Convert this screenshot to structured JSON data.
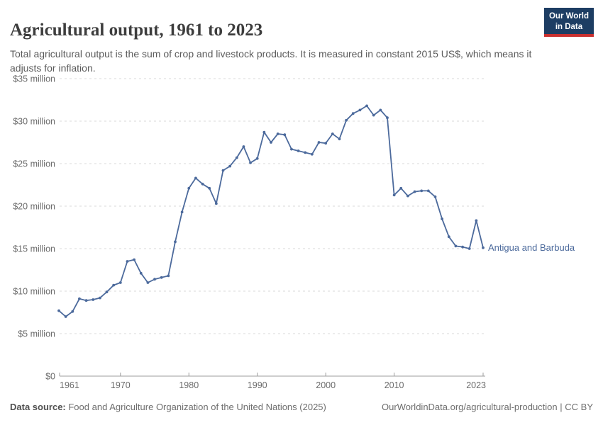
{
  "header": {
    "title": "Agricultural output, 1961 to 2023",
    "subtitle": "Total agricultural output is the sum of crop and livestock products. It is measured in constant 2015 US$, which means it adjusts for inflation.",
    "logo": {
      "line1": "Our World",
      "line2": "in Data",
      "bg_color": "#1d3d63",
      "accent_color": "#c9302f"
    }
  },
  "chart_data": {
    "type": "line",
    "title": "Agricultural output, 1961 to 2023",
    "entity": "Antigua and Barbuda",
    "unit": "constant 2015 US$, millions",
    "x": [
      1961,
      1962,
      1963,
      1964,
      1965,
      1966,
      1967,
      1968,
      1969,
      1970,
      1971,
      1972,
      1973,
      1974,
      1975,
      1976,
      1977,
      1978,
      1979,
      1980,
      1981,
      1982,
      1983,
      1984,
      1985,
      1986,
      1987,
      1988,
      1989,
      1990,
      1991,
      1992,
      1993,
      1994,
      1995,
      1996,
      1997,
      1998,
      1999,
      2000,
      2001,
      2002,
      2003,
      2004,
      2005,
      2006,
      2007,
      2008,
      2009,
      2010,
      2011,
      2012,
      2013,
      2014,
      2015,
      2016,
      2017,
      2018,
      2019,
      2020,
      2021,
      2022,
      2023
    ],
    "values": [
      7.7,
      7.0,
      7.6,
      9.1,
      8.9,
      9.0,
      9.2,
      9.9,
      10.7,
      11.0,
      13.5,
      13.7,
      12.1,
      11.0,
      11.4,
      11.6,
      11.8,
      15.8,
      19.3,
      22.1,
      23.3,
      22.6,
      22.1,
      20.3,
      24.2,
      24.7,
      25.7,
      27.0,
      25.1,
      25.6,
      28.7,
      27.5,
      28.5,
      28.4,
      26.7,
      26.5,
      26.3,
      26.1,
      27.5,
      27.4,
      28.5,
      27.9,
      30.1,
      30.9,
      31.3,
      31.8,
      30.7,
      31.3,
      30.4,
      21.3,
      22.1,
      21.2,
      21.7,
      21.8,
      21.8,
      21.1,
      18.5,
      16.4,
      15.3,
      15.2,
      15.0,
      18.3,
      15.1
    ],
    "ylim": [
      0,
      35
    ],
    "yticks": [
      {
        "value": 0,
        "label": "$0"
      },
      {
        "value": 5,
        "label": "$5 million"
      },
      {
        "value": 10,
        "label": "$10 million"
      },
      {
        "value": 15,
        "label": "$15 million"
      },
      {
        "value": 20,
        "label": "$20 million"
      },
      {
        "value": 25,
        "label": "$25 million"
      },
      {
        "value": 30,
        "label": "$30 million"
      },
      {
        "value": 35,
        "label": "$35 million"
      }
    ],
    "xticks": [
      1961,
      1970,
      1980,
      1990,
      2000,
      2010,
      2023
    ],
    "grid": "dashed-horizontal",
    "legend_position": "end-of-line-label",
    "line_color": "#4C6A9C",
    "grid_color": "#dadada",
    "axis_color": "#9c9c9c",
    "axis_text_color": "#6b6b6b"
  },
  "footer": {
    "source_label": "Data source:",
    "source_text": " Food and Agriculture Organization of the United Nations (2025)",
    "link_text": "OurWorldinData.org/agricultural-production",
    "separator": " | ",
    "license": "CC BY"
  }
}
